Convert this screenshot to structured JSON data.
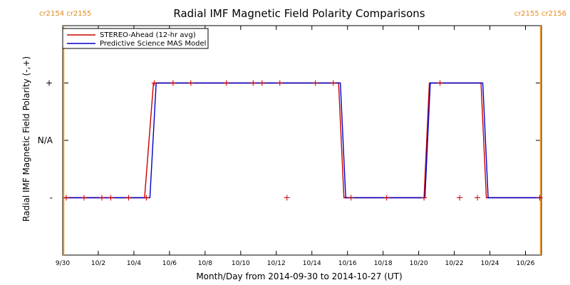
{
  "chart_data": {
    "type": "line",
    "title": "Radial IMF Magnetic Field Polarity Comparisons",
    "xlabel": "Month/Day from 2014-09-30 to 2014-10-27 (UT)",
    "ylabel": "Radial IMF Magnetic Field Polarity (-,+)",
    "x_ticks": [
      "9/30",
      "10/2",
      "10/4",
      "10/6",
      "10/8",
      "10/10",
      "10/12",
      "10/14",
      "10/16",
      "10/18",
      "10/20",
      "10/22",
      "10/24",
      "10/26"
    ],
    "x_tick_days": [
      0,
      2,
      4,
      6,
      8,
      10,
      12,
      14,
      16,
      18,
      20,
      22,
      24,
      26
    ],
    "xlim": [
      0,
      26.9
    ],
    "y_ticks": [
      "-",
      "N/A",
      "+"
    ],
    "y_tick_values": [
      -1,
      0,
      1
    ],
    "ylim": [
      -2,
      2
    ],
    "legend_position": "top-left",
    "carrington_labels": [
      {
        "text": "cr2154 cr2155",
        "day": 0.1
      },
      {
        "text": "cr2155 cr2156",
        "day": 26.8
      }
    ],
    "series": [
      {
        "name": "STEREO-Ahead (12-hr avg)",
        "color": "#cc0000",
        "points": [
          [
            0.1,
            -1
          ],
          [
            4.6,
            -1
          ],
          [
            5.1,
            1
          ],
          [
            15.5,
            1
          ],
          [
            15.8,
            -1
          ],
          [
            20.3,
            -1
          ],
          [
            20.6,
            1
          ],
          [
            23.5,
            1
          ],
          [
            23.8,
            -1
          ],
          [
            26.9,
            -1
          ]
        ]
      },
      {
        "name": "Predictive Science MAS Model",
        "color": "#0000cc",
        "points": [
          [
            0.1,
            -1
          ],
          [
            4.9,
            -1
          ],
          [
            5.25,
            1
          ],
          [
            15.6,
            1
          ],
          [
            15.9,
            -1
          ],
          [
            20.35,
            -1
          ],
          [
            20.65,
            1
          ],
          [
            23.6,
            1
          ],
          [
            23.9,
            -1
          ],
          [
            26.9,
            -1
          ]
        ]
      }
    ],
    "markers": {
      "color": "#cc0000",
      "points": [
        [
          0.2,
          -1
        ],
        [
          1.2,
          -1
        ],
        [
          2.2,
          -1
        ],
        [
          2.7,
          -1
        ],
        [
          3.7,
          -1
        ],
        [
          4.7,
          -1
        ],
        [
          5.15,
          1
        ],
        [
          6.2,
          1
        ],
        [
          7.2,
          1
        ],
        [
          9.2,
          1
        ],
        [
          10.7,
          1
        ],
        [
          11.2,
          1
        ],
        [
          12.2,
          1
        ],
        [
          14.2,
          1
        ],
        [
          15.2,
          1
        ],
        [
          12.6,
          -1
        ],
        [
          16.2,
          -1
        ],
        [
          18.2,
          -1
        ],
        [
          20.3,
          -1
        ],
        [
          21.2,
          1
        ],
        [
          22.3,
          -1
        ],
        [
          23.3,
          -1
        ],
        [
          26.8,
          -1
        ]
      ]
    },
    "boundary_lines": {
      "color": "#f0a030",
      "days": [
        0.05,
        26.85
      ]
    }
  }
}
